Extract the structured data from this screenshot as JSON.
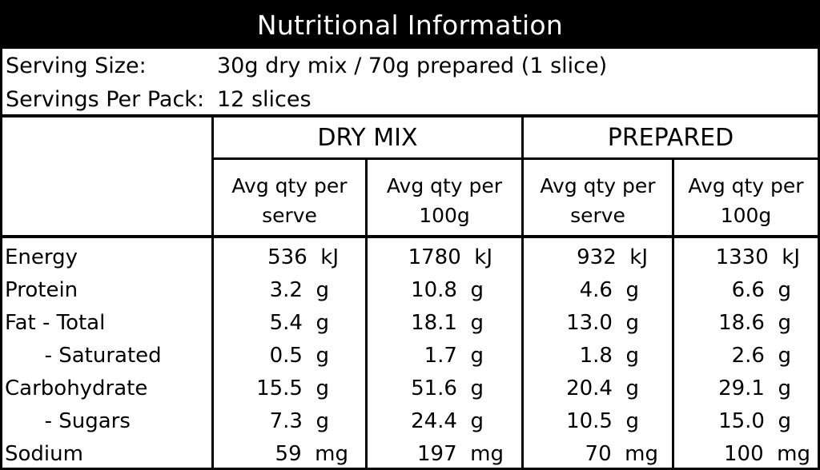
{
  "title": "Nutritional Information",
  "serving": [
    {
      "label": "Serving Size:",
      "value": "30g dry mix / 70g prepared (1 slice)"
    },
    {
      "label": "Servings Per Pack:",
      "value": "12 slices"
    }
  ],
  "groups": [
    "DRY MIX",
    "PREPARED"
  ],
  "subheaders": [
    {
      "line1": "Avg qty per",
      "line2": "serve"
    },
    {
      "line1": "Avg qty per",
      "line2": "100g"
    },
    {
      "line1": "Avg qty per",
      "line2": "serve"
    },
    {
      "line1": "Avg qty per",
      "line2": "100g"
    }
  ],
  "rows": [
    {
      "label": "Energy",
      "values": [
        "536  kJ",
        "1780  kJ",
        "932  kJ",
        "1330  kJ"
      ]
    },
    {
      "label": "Protein",
      "values": [
        "3.2  g",
        "10.8  g",
        "4.6  g",
        "6.6  g"
      ]
    },
    {
      "label": "Fat - Total",
      "values": [
        "5.4  g",
        "18.1  g",
        "13.0  g",
        "18.6  g"
      ]
    },
    {
      "label": "      - Saturated",
      "values": [
        "0.5  g",
        "1.7  g",
        "1.8  g",
        "2.6  g"
      ]
    },
    {
      "label": "Carbohydrate",
      "values": [
        "15.5  g",
        "51.6  g",
        "20.4  g",
        "29.1  g"
      ]
    },
    {
      "label": "      - Sugars",
      "values": [
        "7.3  g",
        "24.4  g",
        "10.5  g",
        "15.0  g"
      ]
    },
    {
      "label": "Sodium",
      "values": [
        "59  mg",
        "197  mg",
        "70  mg",
        "100  mg"
      ]
    }
  ]
}
